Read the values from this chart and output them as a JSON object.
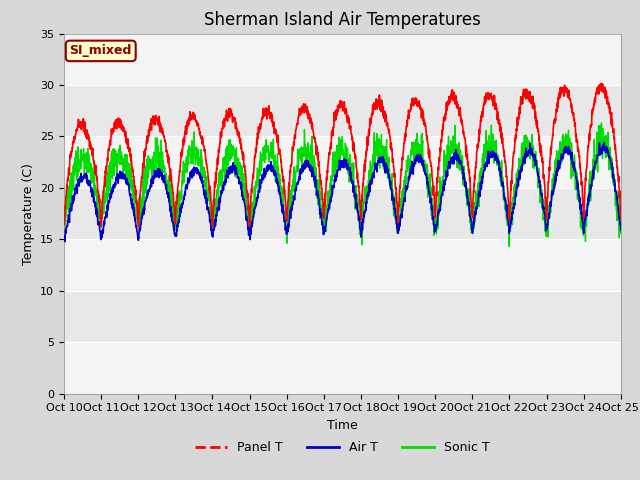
{
  "title": "Sherman Island Air Temperatures",
  "xlabel": "Time",
  "ylabel": "Temperature (C)",
  "ylim": [
    0,
    35
  ],
  "yticks": [
    0,
    5,
    10,
    15,
    20,
    25,
    30,
    35
  ],
  "xtick_labels": [
    "Oct 10",
    "Oct 11",
    "Oct 12",
    "Oct 13",
    "Oct 14",
    "Oct 15",
    "Oct 16",
    "Oct 17",
    "Oct 18",
    "Oct 19",
    "Oct 20",
    "Oct 21",
    "Oct 22",
    "Oct 23",
    "Oct 24",
    "Oct 25"
  ],
  "annotation_text": "SI_mixed",
  "annotation_facecolor": "#ffffcc",
  "annotation_edgecolor": "#8b0000",
  "panel_color": "#ff0000",
  "air_color": "#0000cc",
  "sonic_color": "#00dd00",
  "legend_labels": [
    "Panel T",
    "Air T",
    "Sonic T"
  ],
  "bg_color": "#e8e8e8",
  "title_fontsize": 12,
  "axis_fontsize": 9,
  "tick_fontsize": 8
}
